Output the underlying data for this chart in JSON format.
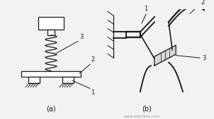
{
  "bg_color": "#f2f2f2",
  "line_color": "#1a1a1a",
  "title_a": "(a)",
  "title_b": "(b)",
  "label1": "1",
  "label2": "2",
  "label3": "3",
  "watermark": "www.elecfans.com"
}
